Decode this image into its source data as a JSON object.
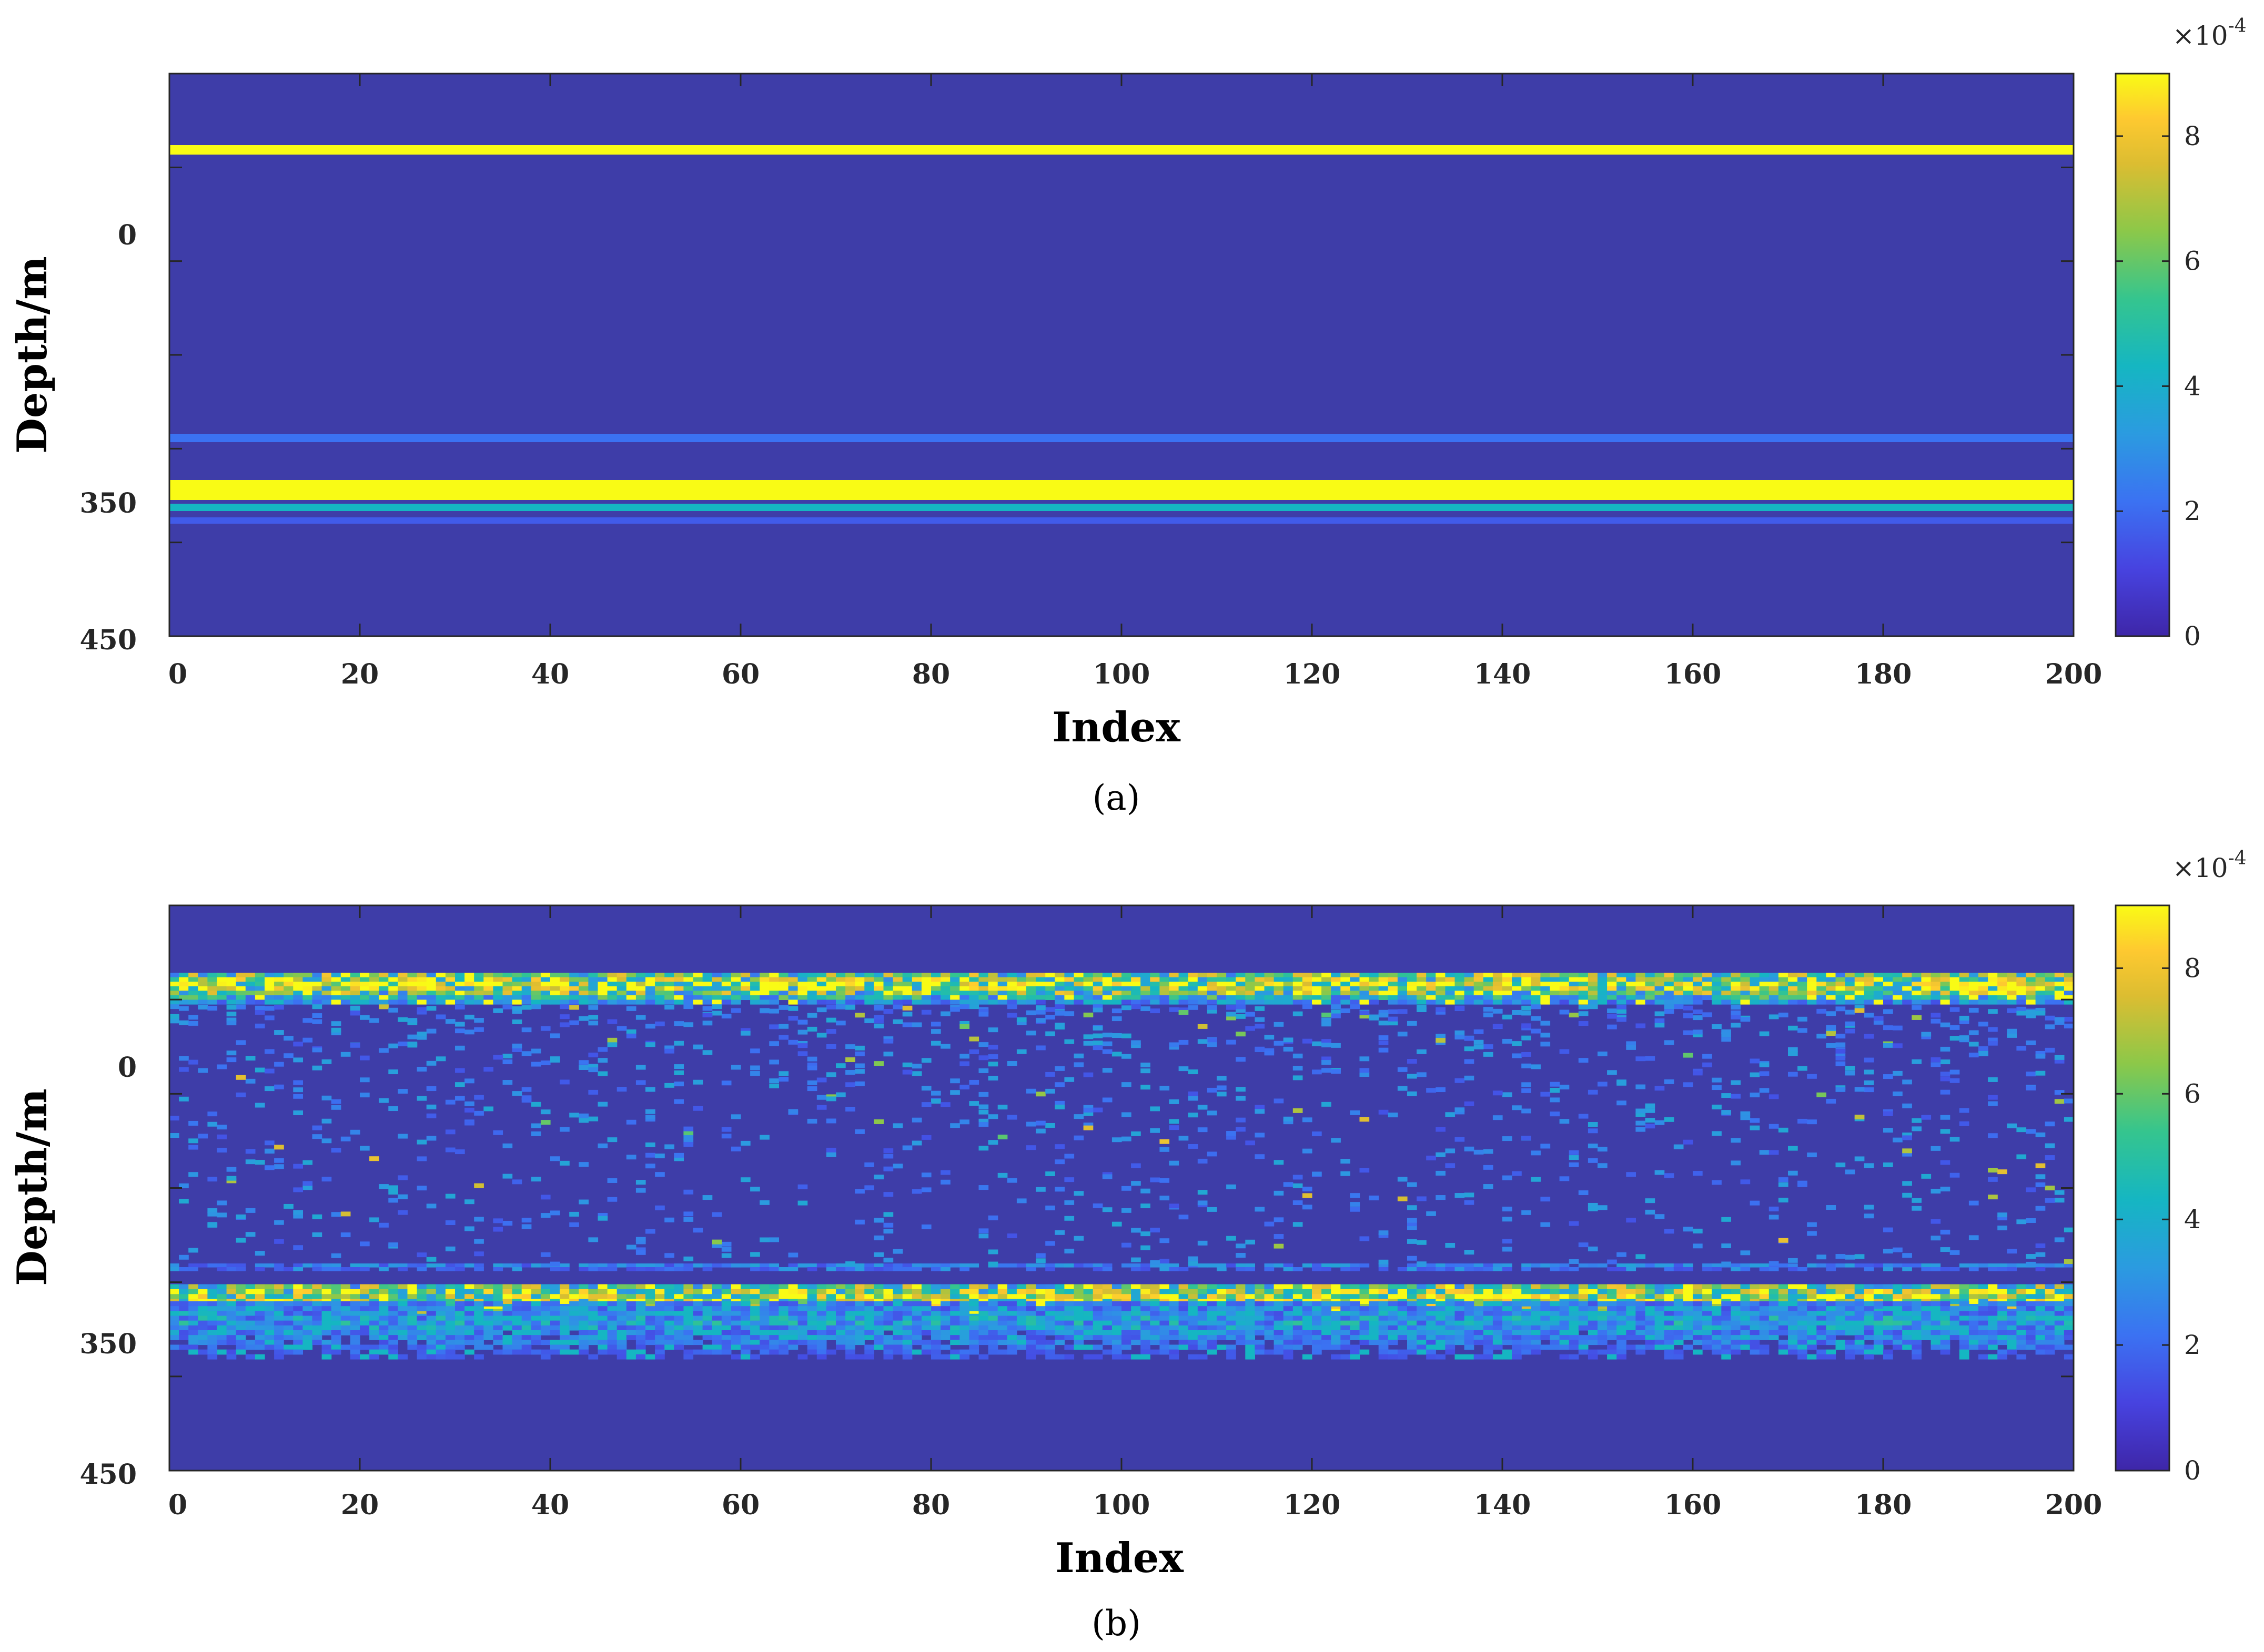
{
  "colors": {
    "background_field": "#3e3da8",
    "colormap": [
      "#3e26a8",
      "#4743e0",
      "#3b72f2",
      "#2b9be0",
      "#15b6c2",
      "#35c58e",
      "#8cc849",
      "#dcbd31",
      "#fec930",
      "#f9fb15"
    ]
  },
  "chart_data": [
    {
      "type": "heatmap",
      "panel_label": "(a)",
      "xlabel": "Index",
      "ylabel": "Depth/m",
      "xlim": [
        0,
        200
      ],
      "x_ticks": [
        "0",
        "20",
        "40",
        "60",
        "80",
        "100",
        "120",
        "140",
        "160",
        "180",
        "200"
      ],
      "y_ticks": [
        "0",
        "350",
        "450"
      ],
      "colorbar": {
        "ticks": [
          "0",
          "2",
          "4",
          "6",
          "8"
        ],
        "multiplier": "×10",
        "multiplier_exponent": "-4",
        "range": [
          0,
          9
        ]
      },
      "bands": [
        {
          "depth": 0,
          "value": 9.0
        },
        {
          "depth": 350,
          "value": 2.0
        },
        {
          "depth": 375,
          "value": 9.0
        },
        {
          "depth": 390,
          "value": 4.0
        },
        {
          "depth": 400,
          "value": 1.5
        }
      ]
    },
    {
      "type": "heatmap",
      "panel_label": "(b)",
      "xlabel": "Index",
      "ylabel": "Depth/m",
      "xlim": [
        0,
        200
      ],
      "x_ticks": [
        "0",
        "20",
        "40",
        "60",
        "80",
        "100",
        "120",
        "140",
        "160",
        "180",
        "200"
      ],
      "y_ticks": [
        "0",
        "350",
        "450"
      ],
      "colorbar": {
        "ticks": [
          "0",
          "2",
          "4",
          "6",
          "8"
        ],
        "multiplier": "×10",
        "multiplier_exponent": "-4",
        "range": [
          0,
          9
        ]
      },
      "bands": [
        {
          "depth": 0,
          "value": 9.0,
          "noisy": true
        },
        {
          "depth": 350,
          "value": 3.0,
          "noisy": true
        },
        {
          "depth": 375,
          "value": 9.0,
          "noisy": true
        },
        {
          "depth": 400,
          "value": 4.0,
          "noisy": true
        }
      ]
    }
  ]
}
